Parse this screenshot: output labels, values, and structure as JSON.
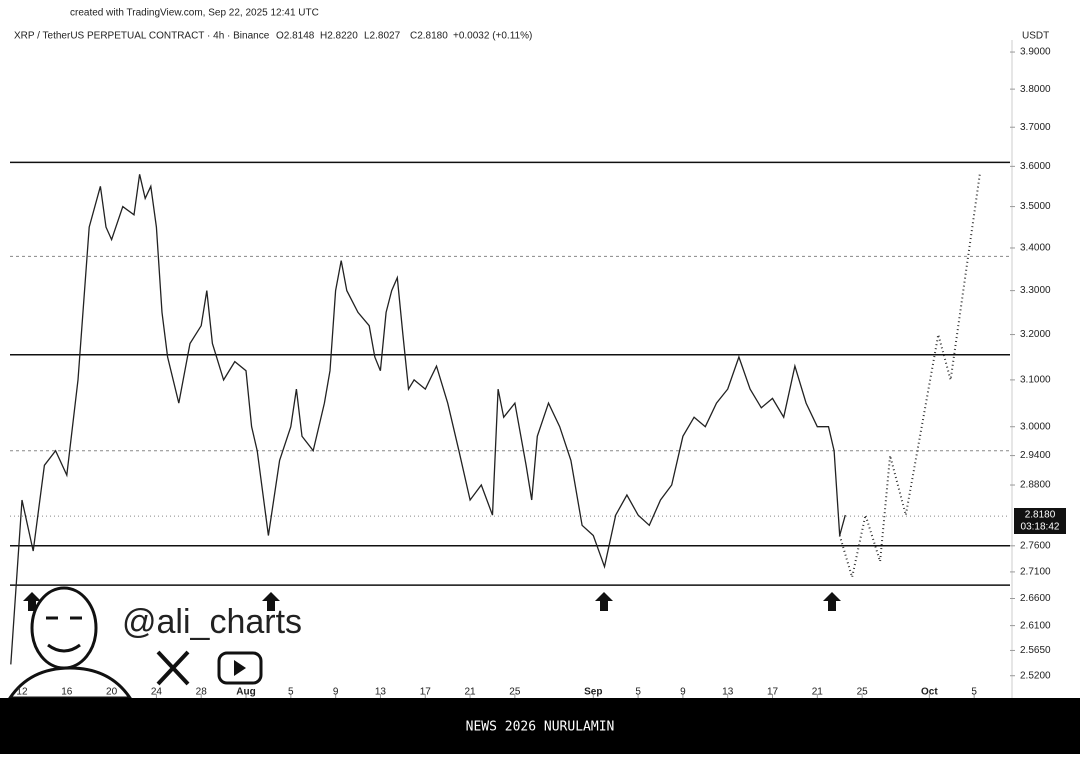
{
  "header": {
    "credit": "created with TradingView.com, Sep 22, 2025 12:41 UTC",
    "symbol": "XRP / TetherUS PERPETUAL CONTRACT · 4h · Binance",
    "open": "O2.8148",
    "high": "H2.8220",
    "low": "L2.8027",
    "close": "C2.8180",
    "change": "+0.0032 (+0.11%)",
    "currency": "USDT",
    "price_tag": "2.8180",
    "countdown": "03:18:42"
  },
  "watermark": {
    "handle": "@ali_charts"
  },
  "footer": {
    "text": "NEWS 2026 NURULAMIN"
  },
  "chart_data": {
    "type": "line",
    "log_scale": true,
    "xlim": [
      -1.07,
      88.2
    ],
    "xticks": [
      {
        "value": 0,
        "label": "12"
      },
      {
        "value": 4,
        "label": "16"
      },
      {
        "value": 8,
        "label": "20"
      },
      {
        "value": 12,
        "label": "24"
      },
      {
        "value": 16,
        "label": "28"
      },
      {
        "value": 20,
        "label": "Aug"
      },
      {
        "value": 24,
        "label": "5"
      },
      {
        "value": 28,
        "label": "9"
      },
      {
        "value": 32,
        "label": "13"
      },
      {
        "value": 36,
        "label": "17"
      },
      {
        "value": 40,
        "label": "21"
      },
      {
        "value": 44,
        "label": "25"
      },
      {
        "value": 51,
        "label": "Sep"
      },
      {
        "value": 55,
        "label": "5"
      },
      {
        "value": 59,
        "label": "9"
      },
      {
        "value": 63,
        "label": "13"
      },
      {
        "value": 67,
        "label": "17"
      },
      {
        "value": 71,
        "label": "21"
      },
      {
        "value": 75,
        "label": "25"
      },
      {
        "value": 81,
        "label": "Oct"
      },
      {
        "value": 85,
        "label": "5"
      }
    ],
    "ylim": [
      2.481,
      3.933
    ],
    "yticks": [
      {
        "value": 3.9,
        "label": "3.9000"
      },
      {
        "value": 3.8,
        "label": "3.8000"
      },
      {
        "value": 3.7,
        "label": "3.7000"
      },
      {
        "value": 3.6,
        "label": "3.6000"
      },
      {
        "value": 3.5,
        "label": "3.5000"
      },
      {
        "value": 3.4,
        "label": "3.4000"
      },
      {
        "value": 3.3,
        "label": "3.3000"
      },
      {
        "value": 3.2,
        "label": "3.2000"
      },
      {
        "value": 3.1,
        "label": "3.1000"
      },
      {
        "value": 3.0,
        "label": "3.0000"
      },
      {
        "value": 2.94,
        "label": "2.9400"
      },
      {
        "value": 2.88,
        "label": "2.8800"
      },
      {
        "value": 2.76,
        "label": "2.7600"
      },
      {
        "value": 2.71,
        "label": "2.7100"
      },
      {
        "value": 2.66,
        "label": "2.6600"
      },
      {
        "value": 2.61,
        "label": "2.6100"
      },
      {
        "value": 2.565,
        "label": "2.5650"
      },
      {
        "value": 2.52,
        "label": "2.5200"
      }
    ],
    "levels": [
      {
        "value": 3.61,
        "style": "solid"
      },
      {
        "value": 3.38,
        "style": "dashed"
      },
      {
        "value": 3.155,
        "style": "solid"
      },
      {
        "value": 2.95,
        "style": "dashed"
      },
      {
        "value": 2.818,
        "style": "dotted"
      },
      {
        "value": 2.76,
        "style": "solid"
      },
      {
        "value": 2.685,
        "style": "solid"
      }
    ],
    "series": [
      {
        "color": "#222222",
        "style": "solid",
        "x": [
          -1,
          0,
          1,
          2,
          3,
          4,
          5,
          6,
          7,
          7.5,
          8,
          9,
          10,
          10.5,
          11,
          11.5,
          12,
          12.5,
          13,
          14,
          15,
          16,
          16.5,
          17,
          18,
          19,
          20,
          20.5,
          21,
          22,
          23,
          24,
          24.5,
          25,
          26,
          27,
          27.5,
          28,
          28.5,
          29,
          30,
          31,
          31.5,
          32,
          32.5,
          33,
          33.5,
          34,
          34.5,
          35,
          36,
          37,
          38,
          39,
          40,
          41,
          42,
          42.5,
          43,
          44,
          45,
          45.5,
          46,
          47,
          48,
          49,
          50,
          51,
          52,
          53,
          54,
          55,
          56,
          57,
          58,
          59,
          60,
          61,
          62,
          63,
          64,
          65,
          66,
          67,
          68,
          69,
          70,
          71,
          72,
          72.5,
          73,
          73.5
        ],
        "values": [
          2.54,
          2.85,
          2.75,
          2.92,
          2.95,
          2.9,
          3.1,
          3.45,
          3.55,
          3.45,
          3.42,
          3.5,
          3.48,
          3.58,
          3.52,
          3.55,
          3.45,
          3.25,
          3.15,
          3.05,
          3.18,
          3.22,
          3.3,
          3.18,
          3.1,
          3.14,
          3.12,
          3.0,
          2.95,
          2.78,
          2.93,
          3.0,
          3.08,
          2.98,
          2.95,
          3.05,
          3.12,
          3.3,
          3.37,
          3.3,
          3.25,
          3.22,
          3.15,
          3.12,
          3.25,
          3.3,
          3.33,
          3.2,
          3.08,
          3.1,
          3.08,
          3.13,
          3.05,
          2.95,
          2.85,
          2.88,
          2.82,
          3.08,
          3.02,
          3.05,
          2.92,
          2.85,
          2.98,
          3.05,
          3.0,
          2.93,
          2.8,
          2.78,
          2.72,
          2.82,
          2.86,
          2.82,
          2.8,
          2.85,
          2.88,
          2.98,
          3.02,
          3.0,
          3.05,
          3.08,
          3.15,
          3.08,
          3.04,
          3.06,
          3.02,
          3.13,
          3.05,
          3.0,
          3.0,
          2.95,
          2.78,
          2.82
        ]
      },
      {
        "color": "#333333",
        "style": "dotted",
        "x": [
          73.0,
          74.1,
          75.3,
          76.6,
          77.5,
          78.9,
          81.8,
          82.9,
          85.5
        ],
        "values": [
          2.78,
          2.7,
          2.82,
          2.73,
          2.94,
          2.82,
          3.2,
          3.1,
          3.58
        ]
      }
    ]
  }
}
